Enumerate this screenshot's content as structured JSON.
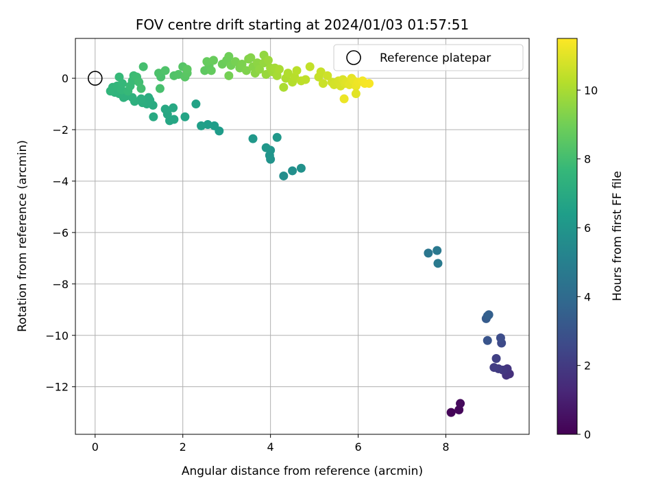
{
  "chart_data": {
    "type": "scatter",
    "title": "FOV centre drift starting at 2024/01/03 01:57:51",
    "xlabel": "Angular distance from reference (arcmin)",
    "ylabel": "Rotation from reference (arcmin)",
    "xlim": [
      -0.45,
      9.9
    ],
    "ylim": [
      -13.85,
      1.55
    ],
    "xticks": [
      0,
      2,
      4,
      6,
      8
    ],
    "xtick_labels": [
      "0",
      "2",
      "4",
      "6",
      "8"
    ],
    "yticks": [
      0,
      -2,
      -4,
      -6,
      -8,
      -10,
      -12
    ],
    "ytick_labels": [
      "0",
      "−2",
      "−4",
      "−6",
      "−8",
      "−10",
      "−12"
    ],
    "grid": true,
    "legend": {
      "placement": "top-right",
      "entries": [
        {
          "label": "Reference platepar",
          "marker": "open-circle"
        }
      ]
    },
    "reference_point": {
      "x": 0,
      "y": 0
    },
    "colorbar": {
      "label": "Hours from first FF file",
      "colormap": "viridis",
      "range": [
        0,
        11.5
      ],
      "ticks": [
        0,
        2,
        4,
        6,
        8,
        10
      ],
      "tick_labels": [
        "0",
        "2",
        "4",
        "6",
        "8",
        "10"
      ]
    },
    "colormap_stops": [
      "#440154",
      "#482878",
      "#3e4989",
      "#31688e",
      "#26828e",
      "#1f9e89",
      "#35b779",
      "#6ece58",
      "#b5de2b",
      "#fde725"
    ],
    "points": [
      {
        "x": 8.12,
        "y": -13.0,
        "t": 0.1
      },
      {
        "x": 8.3,
        "y": -12.9,
        "t": 0.2
      },
      {
        "x": 8.33,
        "y": -12.65,
        "t": 0.3
      },
      {
        "x": 9.45,
        "y": -11.5,
        "t": 1.6
      },
      {
        "x": 9.38,
        "y": -11.55,
        "t": 1.7
      },
      {
        "x": 9.4,
        "y": -11.3,
        "t": 1.8
      },
      {
        "x": 9.3,
        "y": -11.35,
        "t": 1.9
      },
      {
        "x": 9.2,
        "y": -11.3,
        "t": 2.0
      },
      {
        "x": 9.1,
        "y": -11.25,
        "t": 2.1
      },
      {
        "x": 9.15,
        "y": -10.9,
        "t": 2.2
      },
      {
        "x": 9.27,
        "y": -10.3,
        "t": 2.6
      },
      {
        "x": 9.25,
        "y": -10.1,
        "t": 2.7
      },
      {
        "x": 8.95,
        "y": -10.2,
        "t": 3.0
      },
      {
        "x": 8.92,
        "y": -9.35,
        "t": 3.3
      },
      {
        "x": 8.95,
        "y": -9.25,
        "t": 3.4
      },
      {
        "x": 8.98,
        "y": -9.2,
        "t": 3.5
      },
      {
        "x": 7.6,
        "y": -6.8,
        "t": 4.5
      },
      {
        "x": 7.8,
        "y": -6.7,
        "t": 4.6
      },
      {
        "x": 7.82,
        "y": -7.2,
        "t": 4.7
      },
      {
        "x": 4.3,
        "y": -3.8,
        "t": 5.6
      },
      {
        "x": 4.5,
        "y": -3.6,
        "t": 5.7
      },
      {
        "x": 4.7,
        "y": -3.5,
        "t": 5.8
      },
      {
        "x": 4.0,
        "y": -3.15,
        "t": 5.9
      },
      {
        "x": 3.98,
        "y": -3.0,
        "t": 6.0
      },
      {
        "x": 4.0,
        "y": -2.8,
        "t": 6.0
      },
      {
        "x": 3.9,
        "y": -2.7,
        "t": 6.05
      },
      {
        "x": 3.6,
        "y": -2.35,
        "t": 6.1
      },
      {
        "x": 4.15,
        "y": -2.3,
        "t": 6.1
      },
      {
        "x": 2.83,
        "y": -2.05,
        "t": 6.3
      },
      {
        "x": 2.72,
        "y": -1.85,
        "t": 6.35
      },
      {
        "x": 2.57,
        "y": -1.8,
        "t": 6.4
      },
      {
        "x": 2.42,
        "y": -1.85,
        "t": 6.45
      },
      {
        "x": 2.3,
        "y": -1.0,
        "t": 6.6
      },
      {
        "x": 2.05,
        "y": -1.5,
        "t": 6.7
      },
      {
        "x": 1.8,
        "y": -1.6,
        "t": 6.8
      },
      {
        "x": 1.7,
        "y": -1.65,
        "t": 6.8
      },
      {
        "x": 1.65,
        "y": -1.4,
        "t": 6.85
      },
      {
        "x": 1.6,
        "y": -1.2,
        "t": 6.9
      },
      {
        "x": 1.78,
        "y": -1.15,
        "t": 6.9
      },
      {
        "x": 1.33,
        "y": -1.5,
        "t": 6.95
      },
      {
        "x": 1.32,
        "y": -1.05,
        "t": 7.0
      },
      {
        "x": 1.25,
        "y": -0.85,
        "t": 7.05
      },
      {
        "x": 1.22,
        "y": -0.75,
        "t": 7.1
      },
      {
        "x": 1.18,
        "y": -1.0,
        "t": 7.1
      },
      {
        "x": 1.08,
        "y": -0.95,
        "t": 7.15
      },
      {
        "x": 1.05,
        "y": -0.8,
        "t": 7.2
      },
      {
        "x": 0.9,
        "y": -0.9,
        "t": 7.25
      },
      {
        "x": 0.85,
        "y": -0.75,
        "t": 7.3
      },
      {
        "x": 0.7,
        "y": -0.7,
        "t": 7.35
      },
      {
        "x": 0.65,
        "y": -0.75,
        "t": 7.35
      },
      {
        "x": 0.55,
        "y": -0.6,
        "t": 7.4
      },
      {
        "x": 0.45,
        "y": -0.55,
        "t": 7.45
      },
      {
        "x": 0.35,
        "y": -0.5,
        "t": 7.5
      },
      {
        "x": 0.4,
        "y": -0.35,
        "t": 7.5
      },
      {
        "x": 0.5,
        "y": -0.3,
        "t": 7.55
      },
      {
        "x": 0.6,
        "y": -0.45,
        "t": 7.6
      },
      {
        "x": 0.62,
        "y": -0.2,
        "t": 7.65
      },
      {
        "x": 0.55,
        "y": 0.05,
        "t": 7.7
      },
      {
        "x": 0.75,
        "y": -0.5,
        "t": 7.7
      },
      {
        "x": 0.8,
        "y": -0.3,
        "t": 7.75
      },
      {
        "x": 0.85,
        "y": -0.1,
        "t": 7.8
      },
      {
        "x": 0.88,
        "y": 0.1,
        "t": 7.85
      },
      {
        "x": 0.95,
        "y": 0.05,
        "t": 7.9
      },
      {
        "x": 1.0,
        "y": -0.15,
        "t": 7.95
      },
      {
        "x": 1.05,
        "y": -0.4,
        "t": 8.0
      },
      {
        "x": 1.1,
        "y": 0.45,
        "t": 8.05
      },
      {
        "x": 1.48,
        "y": -0.4,
        "t": 8.1
      },
      {
        "x": 1.5,
        "y": 0.05,
        "t": 8.15
      },
      {
        "x": 1.45,
        "y": 0.2,
        "t": 8.2
      },
      {
        "x": 1.6,
        "y": 0.3,
        "t": 8.25
      },
      {
        "x": 1.8,
        "y": 0.1,
        "t": 8.3
      },
      {
        "x": 1.9,
        "y": 0.15,
        "t": 8.35
      },
      {
        "x": 2.0,
        "y": 0.45,
        "t": 8.4
      },
      {
        "x": 2.05,
        "y": 0.05,
        "t": 8.45
      },
      {
        "x": 2.1,
        "y": 0.2,
        "t": 8.5
      },
      {
        "x": 2.1,
        "y": 0.35,
        "t": 8.55
      },
      {
        "x": 2.5,
        "y": 0.3,
        "t": 8.6
      },
      {
        "x": 2.6,
        "y": 0.5,
        "t": 8.65
      },
      {
        "x": 2.65,
        "y": 0.3,
        "t": 8.7
      },
      {
        "x": 2.55,
        "y": 0.65,
        "t": 8.75
      },
      {
        "x": 2.7,
        "y": 0.7,
        "t": 8.8
      },
      {
        "x": 2.9,
        "y": 0.55,
        "t": 8.85
      },
      {
        "x": 3.0,
        "y": 0.7,
        "t": 8.9
      },
      {
        "x": 3.05,
        "y": 0.85,
        "t": 8.95
      },
      {
        "x": 3.1,
        "y": 0.5,
        "t": 9.0
      },
      {
        "x": 3.05,
        "y": 0.1,
        "t": 9.05
      },
      {
        "x": 3.2,
        "y": 0.65,
        "t": 9.1
      },
      {
        "x": 3.3,
        "y": 0.4,
        "t": 9.15
      },
      {
        "x": 3.35,
        "y": 0.55,
        "t": 9.2
      },
      {
        "x": 3.45,
        "y": 0.3,
        "t": 9.25
      },
      {
        "x": 3.5,
        "y": 0.75,
        "t": 9.3
      },
      {
        "x": 3.55,
        "y": 0.8,
        "t": 9.35
      },
      {
        "x": 3.6,
        "y": 0.45,
        "t": 9.4
      },
      {
        "x": 3.65,
        "y": 0.2,
        "t": 9.45
      },
      {
        "x": 3.7,
        "y": 0.6,
        "t": 9.5
      },
      {
        "x": 3.75,
        "y": 0.35,
        "t": 9.55
      },
      {
        "x": 3.85,
        "y": 0.9,
        "t": 9.6
      },
      {
        "x": 3.85,
        "y": 0.6,
        "t": 9.65
      },
      {
        "x": 3.9,
        "y": 0.15,
        "t": 9.7
      },
      {
        "x": 3.95,
        "y": 0.7,
        "t": 9.75
      },
      {
        "x": 4.0,
        "y": 0.4,
        "t": 9.8
      },
      {
        "x": 4.05,
        "y": 0.25,
        "t": 9.85
      },
      {
        "x": 4.1,
        "y": 0.4,
        "t": 9.9
      },
      {
        "x": 4.15,
        "y": 0.1,
        "t": 9.95
      },
      {
        "x": 4.2,
        "y": 0.35,
        "t": 10.0
      },
      {
        "x": 4.3,
        "y": -0.35,
        "t": 10.05
      },
      {
        "x": 4.35,
        "y": 0.0,
        "t": 10.1
      },
      {
        "x": 4.4,
        "y": 0.2,
        "t": 10.15
      },
      {
        "x": 4.5,
        "y": -0.15,
        "t": 10.2
      },
      {
        "x": 4.55,
        "y": 0.05,
        "t": 10.25
      },
      {
        "x": 4.6,
        "y": 0.3,
        "t": 10.3
      },
      {
        "x": 4.7,
        "y": -0.1,
        "t": 10.35
      },
      {
        "x": 4.8,
        "y": -0.05,
        "t": 10.4
      },
      {
        "x": 4.9,
        "y": 0.45,
        "t": 10.45
      },
      {
        "x": 5.1,
        "y": 0.05,
        "t": 10.5
      },
      {
        "x": 5.15,
        "y": 0.25,
        "t": 10.55
      },
      {
        "x": 5.2,
        "y": -0.2,
        "t": 10.6
      },
      {
        "x": 5.3,
        "y": 0.1,
        "t": 10.65
      },
      {
        "x": 5.4,
        "y": -0.15,
        "t": 10.7
      },
      {
        "x": 5.45,
        "y": -0.25,
        "t": 10.75
      },
      {
        "x": 5.55,
        "y": -0.1,
        "t": 10.8
      },
      {
        "x": 5.6,
        "y": -0.3,
        "t": 10.85
      },
      {
        "x": 5.65,
        "y": -0.05,
        "t": 10.9
      },
      {
        "x": 5.7,
        "y": -0.2,
        "t": 10.95
      },
      {
        "x": 5.75,
        "y": -0.15,
        "t": 11.0
      },
      {
        "x": 5.8,
        "y": -0.25,
        "t": 11.05
      },
      {
        "x": 5.85,
        "y": 0.0,
        "t": 11.1
      },
      {
        "x": 5.9,
        "y": -0.1,
        "t": 11.15
      },
      {
        "x": 5.95,
        "y": -0.3,
        "t": 11.2
      },
      {
        "x": 6.0,
        "y": -0.15,
        "t": 11.25
      },
      {
        "x": 6.1,
        "y": -0.1,
        "t": 11.3
      },
      {
        "x": 6.15,
        "y": -0.2,
        "t": 11.35
      },
      {
        "x": 6.25,
        "y": -0.2,
        "t": 11.4
      },
      {
        "x": 5.68,
        "y": -0.8,
        "t": 11.2
      },
      {
        "x": 5.95,
        "y": -0.6,
        "t": 11.0
      }
    ]
  }
}
